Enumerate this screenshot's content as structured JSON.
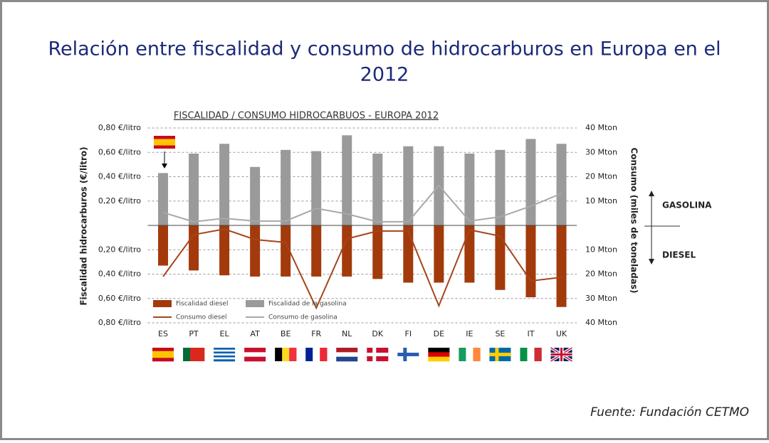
{
  "title": "Relación entre fiscalidad y consumo de hidrocarburos en Europa en el 2012",
  "source": "Fuente: Fundación CETMO",
  "chart_data": [
    {
      "type": "bar",
      "title": "FISCALIDAD / CONSUMO HIDROCARBUOS - EUROPA 2012",
      "ylabel": "Fiscalidad  hidrocarburos (€/litro)",
      "y2label": "Consumo (miles de toneladas)",
      "label": "GASOLINA",
      "grid": true,
      "ylim": [
        0,
        0.8
      ],
      "yticks": [
        {
          "value": 0.2,
          "label": "0,20 €/litro"
        },
        {
          "value": 0.4,
          "label": "0,40 €/litro"
        },
        {
          "value": 0.6,
          "label": "0,60 €/litro"
        },
        {
          "value": 0.8,
          "label": "0,80 €/litro"
        }
      ],
      "y2lim": [
        0,
        40
      ],
      "y2ticks": [
        {
          "value": 10,
          "label": "10 Mton"
        },
        {
          "value": 20,
          "label": "20 Mton"
        },
        {
          "value": 30,
          "label": "30 Mton"
        },
        {
          "value": 40,
          "label": "40 Mton"
        }
      ],
      "series": [
        {
          "name": "Fiscalidad de la gasolina",
          "type": "bar",
          "color": "#9a9a9a",
          "values": [
            0.43,
            0.59,
            0.67,
            0.48,
            0.62,
            0.61,
            0.74,
            0.59,
            0.65,
            0.65,
            0.59,
            0.62,
            0.71,
            0.67
          ]
        },
        {
          "name": "Consumo de gasolina",
          "type": "line",
          "axis": "y2",
          "color": "#a8a8a8",
          "values": [
            5.3,
            1.5,
            2.9,
            1.8,
            1.8,
            7.0,
            4.7,
            1.5,
            1.5,
            16.4,
            1.8,
            3.5,
            7.9,
            13.1
          ]
        }
      ]
    },
    {
      "type": "bar",
      "label": "DIESEL",
      "inverted": true,
      "grid": true,
      "categories": [
        "ES",
        "PT",
        "EL",
        "AT",
        "BE",
        "FR",
        "NL",
        "DK",
        "FI",
        "DE",
        "IE",
        "SE",
        "IT",
        "UK"
      ],
      "ylim": [
        0,
        0.8
      ],
      "yticks": [
        {
          "value": 0.2,
          "label": "0,20 €/litro"
        },
        {
          "value": 0.4,
          "label": "0,40 €/litro"
        },
        {
          "value": 0.6,
          "label": "0,60 €/litro"
        },
        {
          "value": 0.8,
          "label": "0,80 €/litro"
        }
      ],
      "y2lim": [
        0,
        40
      ],
      "y2ticks": [
        {
          "value": 10,
          "label": "10 Mton"
        },
        {
          "value": 20,
          "label": "20 Mton"
        },
        {
          "value": 30,
          "label": "30 Mton"
        },
        {
          "value": 40,
          "label": "40 Mton"
        }
      ],
      "series": [
        {
          "name": "Fiscalidad diesel",
          "type": "bar",
          "color": "#a33a0c",
          "values": [
            0.33,
            0.37,
            0.41,
            0.42,
            0.42,
            0.42,
            0.42,
            0.44,
            0.47,
            0.47,
            0.47,
            0.53,
            0.59,
            0.67
          ]
        },
        {
          "name": "Consumo diesel",
          "type": "line",
          "axis": "y2",
          "color": "#a5451c",
          "values": [
            21.0,
            3.8,
            1.5,
            5.8,
            7.0,
            33.9,
            5.5,
            2.3,
            2.3,
            33.0,
            1.8,
            4.4,
            22.8,
            21.3
          ]
        }
      ]
    }
  ]
}
